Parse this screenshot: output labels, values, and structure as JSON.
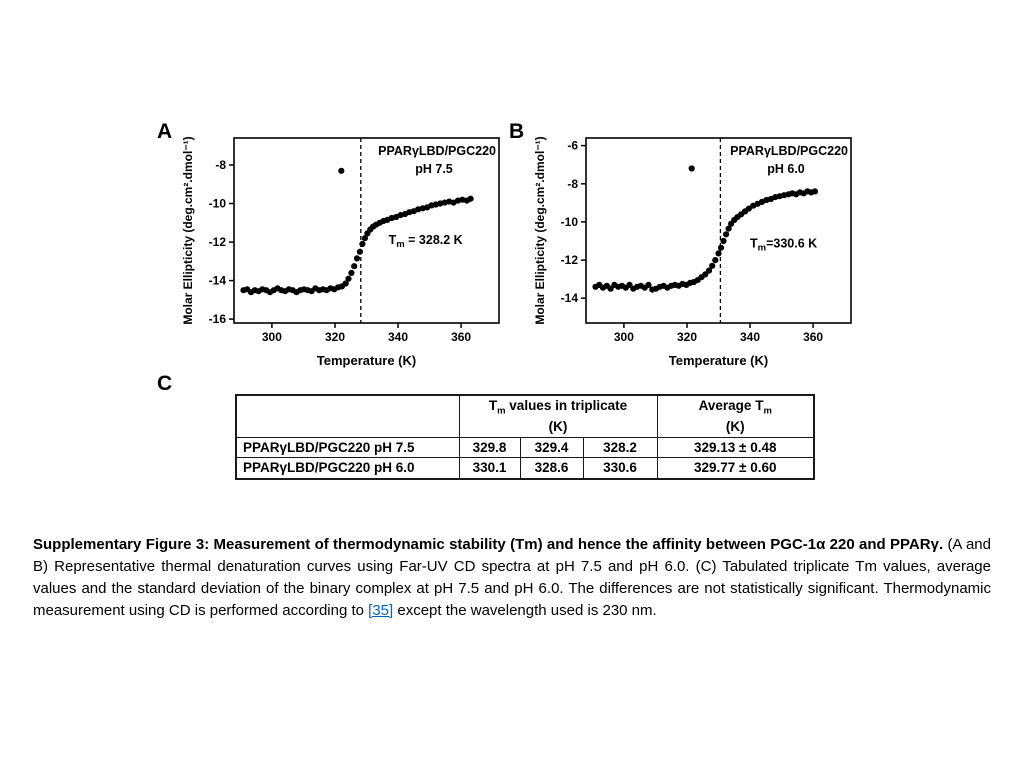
{
  "colors": {
    "background": "#ffffff",
    "marker": "#000000",
    "link": "#0563c1",
    "border": "#1a1a1a"
  },
  "figure": {
    "panels": [
      {
        "label": "A"
      },
      {
        "label": "B"
      },
      {
        "label": "C"
      }
    ]
  },
  "chart_data": [
    {
      "type": "scatter",
      "title": "PPARγLBD/PGC220",
      "subtitle": "pH 7.5",
      "xlabel": "Temperature (K)",
      "ylabel": "Molar Ellipticity (deg.cm².dmol⁻¹)",
      "xlim": [
        288,
        372
      ],
      "ylim": [
        -16.2,
        -6.6
      ],
      "xticks": [
        300,
        320,
        340,
        360
      ],
      "yticks": [
        -16,
        -14,
        -12,
        -10,
        -8
      ],
      "grid": false,
      "legend": "none",
      "marker_color": "#000000",
      "tm_line": 328.2,
      "tm_label": {
        "pre": "T",
        "sub": "m",
        "post": " = 328.2 K"
      },
      "tm_label_at": [
        337,
        -12.1
      ],
      "points": [
        [
          291,
          -14.5
        ],
        [
          292.2,
          -14.45
        ],
        [
          293.4,
          -14.6
        ],
        [
          294.6,
          -14.5
        ],
        [
          295.8,
          -14.55
        ],
        [
          297,
          -14.45
        ],
        [
          298.2,
          -14.5
        ],
        [
          299.4,
          -14.6
        ],
        [
          300.6,
          -14.5
        ],
        [
          301.8,
          -14.4
        ],
        [
          303,
          -14.5
        ],
        [
          304.2,
          -14.55
        ],
        [
          305.4,
          -14.45
        ],
        [
          306.6,
          -14.5
        ],
        [
          307.8,
          -14.6
        ],
        [
          309,
          -14.5
        ],
        [
          310.2,
          -14.45
        ],
        [
          311.4,
          -14.5
        ],
        [
          312.6,
          -14.55
        ],
        [
          313.8,
          -14.4
        ],
        [
          315,
          -14.5
        ],
        [
          316.2,
          -14.45
        ],
        [
          317.4,
          -14.5
        ],
        [
          318.6,
          -14.4
        ],
        [
          319.8,
          -14.45
        ],
        [
          321,
          -14.35
        ],
        [
          322.2,
          -14.3
        ],
        [
          323.4,
          -14.15
        ],
        [
          324.3,
          -13.9
        ],
        [
          325.2,
          -13.6
        ],
        [
          326.1,
          -13.25
        ],
        [
          327,
          -12.85
        ],
        [
          327.9,
          -12.5
        ],
        [
          328.7,
          -12.1
        ],
        [
          329.5,
          -11.8
        ],
        [
          330.3,
          -11.55
        ],
        [
          331.2,
          -11.35
        ],
        [
          332.1,
          -11.2
        ],
        [
          333,
          -11.1
        ],
        [
          334.2,
          -11.0
        ],
        [
          335.4,
          -10.9
        ],
        [
          336.6,
          -10.85
        ],
        [
          338,
          -10.75
        ],
        [
          339.4,
          -10.7
        ],
        [
          340.8,
          -10.6
        ],
        [
          342.2,
          -10.55
        ],
        [
          343.6,
          -10.45
        ],
        [
          345,
          -10.4
        ],
        [
          346.4,
          -10.3
        ],
        [
          347.8,
          -10.25
        ],
        [
          349.2,
          -10.2
        ],
        [
          350.6,
          -10.1
        ],
        [
          352,
          -10.05
        ],
        [
          353.4,
          -10.0
        ],
        [
          354.8,
          -9.95
        ],
        [
          356.2,
          -9.9
        ],
        [
          357.6,
          -9.95
        ],
        [
          359,
          -9.85
        ],
        [
          360.4,
          -9.8
        ],
        [
          361.8,
          -9.85
        ],
        [
          363,
          -9.75
        ],
        [
          322,
          -8.3
        ]
      ]
    },
    {
      "type": "scatter",
      "title": "PPARγLBD/PGC220",
      "subtitle": "pH 6.0",
      "xlabel": "Temperature (K)",
      "ylabel": "Molar Ellipticity (deg.cm².dmol⁻¹)",
      "xlim": [
        288,
        372
      ],
      "ylim": [
        -15.3,
        -5.6
      ],
      "xticks": [
        300,
        320,
        340,
        360
      ],
      "yticks": [
        -14,
        -12,
        -10,
        -8,
        -6
      ],
      "grid": false,
      "legend": "none",
      "marker_color": "#000000",
      "tm_line": 330.6,
      "tm_label": {
        "pre": "T",
        "sub": "m",
        "post": "=330.6 K"
      },
      "tm_label_at": [
        340,
        -11.35
      ],
      "points": [
        [
          291,
          -13.4
        ],
        [
          292.2,
          -13.3
        ],
        [
          293.4,
          -13.45
        ],
        [
          294.6,
          -13.35
        ],
        [
          295.8,
          -13.5
        ],
        [
          297,
          -13.3
        ],
        [
          298.2,
          -13.4
        ],
        [
          299.4,
          -13.35
        ],
        [
          300.6,
          -13.45
        ],
        [
          301.8,
          -13.3
        ],
        [
          303,
          -13.5
        ],
        [
          304.2,
          -13.4
        ],
        [
          305.4,
          -13.35
        ],
        [
          306.6,
          -13.45
        ],
        [
          307.8,
          -13.3
        ],
        [
          309,
          -13.55
        ],
        [
          310.2,
          -13.5
        ],
        [
          311.4,
          -13.4
        ],
        [
          312.6,
          -13.35
        ],
        [
          313.8,
          -13.45
        ],
        [
          315,
          -13.35
        ],
        [
          316.2,
          -13.3
        ],
        [
          317.4,
          -13.35
        ],
        [
          318.6,
          -13.25
        ],
        [
          319.8,
          -13.3
        ],
        [
          321,
          -13.2
        ],
        [
          322.2,
          -13.15
        ],
        [
          323.4,
          -13.05
        ],
        [
          324.6,
          -12.9
        ],
        [
          325.8,
          -12.75
        ],
        [
          327,
          -12.55
        ],
        [
          328,
          -12.3
        ],
        [
          329,
          -12.0
        ],
        [
          330,
          -11.65
        ],
        [
          330.8,
          -11.35
        ],
        [
          331.6,
          -11.0
        ],
        [
          332.4,
          -10.65
        ],
        [
          333.2,
          -10.35
        ],
        [
          334,
          -10.1
        ],
        [
          335,
          -9.9
        ],
        [
          336,
          -9.75
        ],
        [
          337.2,
          -9.6
        ],
        [
          338.4,
          -9.45
        ],
        [
          339.6,
          -9.3
        ],
        [
          341,
          -9.15
        ],
        [
          342.4,
          -9.05
        ],
        [
          343.8,
          -8.95
        ],
        [
          345.2,
          -8.85
        ],
        [
          346.6,
          -8.8
        ],
        [
          348,
          -8.7
        ],
        [
          349.4,
          -8.65
        ],
        [
          350.8,
          -8.6
        ],
        [
          352.2,
          -8.55
        ],
        [
          353.4,
          -8.5
        ],
        [
          354.6,
          -8.55
        ],
        [
          355.8,
          -8.45
        ],
        [
          357,
          -8.5
        ],
        [
          358.2,
          -8.4
        ],
        [
          359.4,
          -8.45
        ],
        [
          360.6,
          -8.4
        ],
        [
          321.5,
          -7.2
        ]
      ]
    }
  ],
  "table": {
    "header": {
      "corner": "",
      "triplicate": {
        "pre": "T",
        "sub": "m",
        "post": " values in triplicate"
      },
      "triplicate_unit": "(K)",
      "average": {
        "pre": "Average T",
        "sub": "m"
      },
      "average_unit": "(K)"
    },
    "rows": [
      {
        "name": "PPARγLBD/PGC220 pH 7.5",
        "values": [
          "329.8",
          "329.4",
          "328.2"
        ],
        "average": "329.13 ± 0.48"
      },
      {
        "name": "PPARγLBD/PGC220 pH 6.0",
        "values": [
          "330.1",
          "328.6",
          "330.6"
        ],
        "average": "329.77 ± 0.60"
      }
    ]
  },
  "caption": {
    "bold": "Supplementary Figure 3: Measurement of thermodynamic stability (Tm) and hence the affinity between PGC-1α 220 and PPARγ.",
    "text1": " (A and B) Representative thermal denaturation curves using Far-UV CD spectra at pH 7.5 and pH 6.0. (C) Tabulated triplicate Tm values, average values and the standard deviation of the binary complex at pH 7.5 and pH 6.0. The differences are not statistically significant. Thermodynamic measurement using CD is performed according to ",
    "link": "[35]",
    "text2": " except the wavelength used is 230 nm."
  }
}
